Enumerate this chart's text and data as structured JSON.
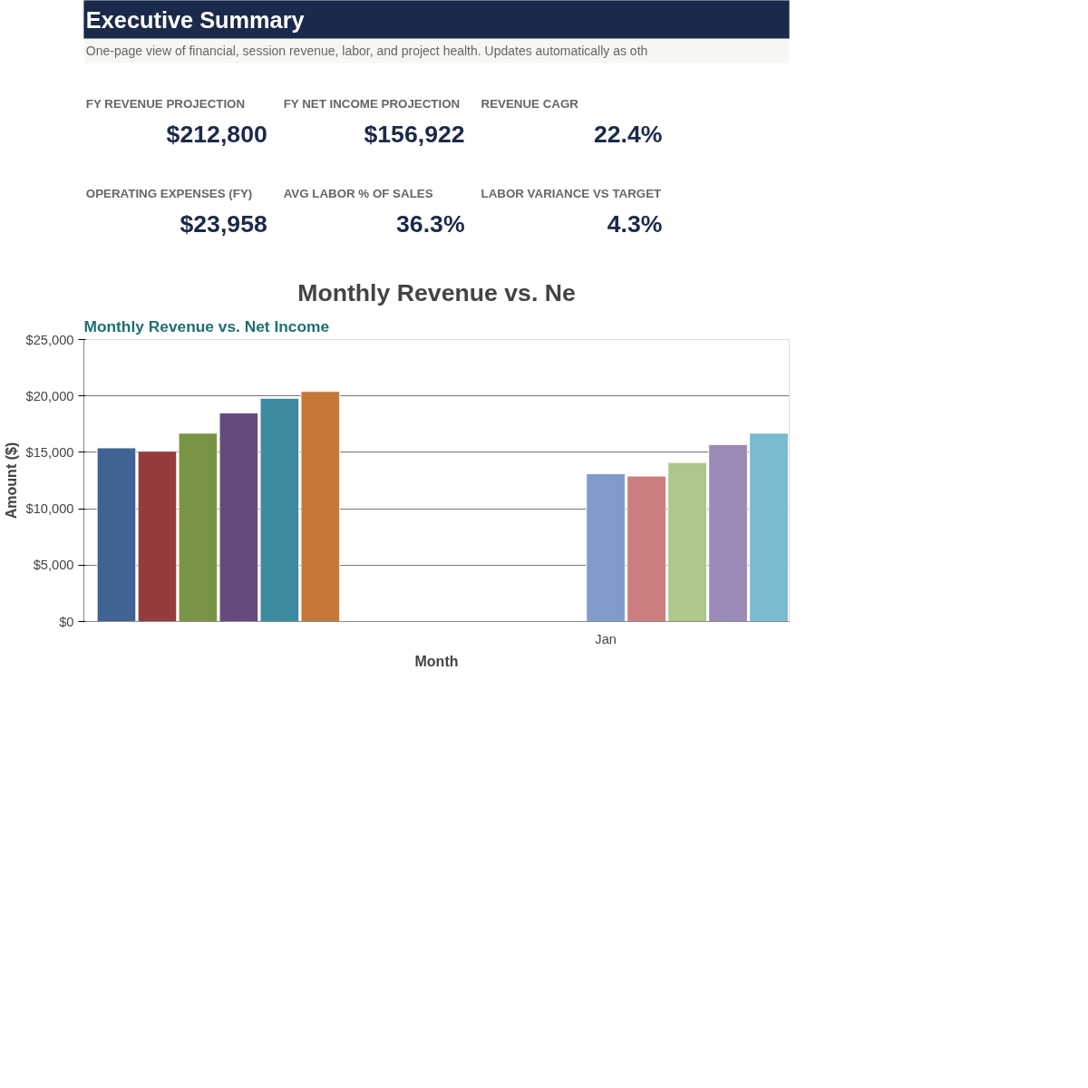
{
  "chart_data": [
    {
      "type": "other",
      "title": "Executive Summary",
      "subtitle": "One-page view of financial, session revenue, labor, and project health. Updates automatically as oth",
      "annotations": [
        "FY REVENUE PROJECTION",
        "$212,800",
        "FY NET INCOME PROJECTION",
        "$156,922",
        "REVENUE CAGR",
        "22.4%",
        "OPERATING EXPENSES (FY)",
        "$23,958",
        "AVG LABOR % OF SALES",
        "36.3%",
        "LABOR VARIANCE VS TARGET",
        "4.3%"
      ]
    },
    {
      "type": "bar",
      "title": "Monthly Revenue vs. Ne",
      "xlabel": "Month",
      "ylabel": "Amount ($)",
      "annotations": [
        "Monthly Revenue vs. Net Income"
      ],
      "categories": [
        null,
        null,
        null,
        null,
        null,
        null,
        null,
        null,
        null,
        null,
        null,
        null,
        "Jan",
        null,
        null,
        null,
        null
      ],
      "values": [
        15400,
        15100,
        16700,
        18500,
        19800,
        20400,
        null,
        null,
        null,
        null,
        null,
        null,
        13100,
        12900,
        14100,
        15700,
        16700
      ],
      "colors": [
        "#406393",
        "#963c3c",
        "#7a9445",
        "#654b7d",
        "#3c8ba0",
        "#c57838",
        null,
        null,
        null,
        null,
        null,
        null,
        "#7f9ccb",
        "#cc7d7d",
        "#aec78a",
        "#9c8ab6",
        "#7bb9cf"
      ],
      "ylim": [
        0,
        25000
      ],
      "yticks": [
        {
          "value": 0,
          "label": "$0"
        },
        {
          "value": 5000,
          "label": "$5,000"
        },
        {
          "value": 10000,
          "label": "$10,000"
        },
        {
          "value": 15000,
          "label": "$15,000"
        },
        {
          "value": 20000,
          "label": "$20,000"
        },
        {
          "value": 25000,
          "label": "$25,000"
        }
      ],
      "grid": "y"
    }
  ]
}
